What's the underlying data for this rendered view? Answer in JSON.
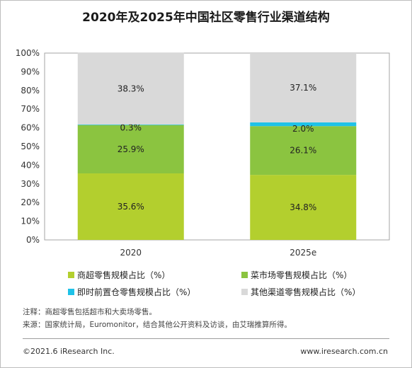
{
  "title": "2020年及2025年中国社区零售行业渠道结构",
  "chart_data": {
    "type": "bar",
    "stacked": true,
    "categories": [
      "2020",
      "2025e"
    ],
    "ylim": [
      0,
      100
    ],
    "yticks": [
      "0%",
      "10%",
      "20%",
      "30%",
      "40%",
      "50%",
      "60%",
      "70%",
      "80%",
      "90%",
      "100%"
    ],
    "series": [
      {
        "name": "商超零售规模占比（%）",
        "color": "#b3cf2e",
        "values": [
          35.6,
          34.8
        ],
        "labels": [
          "35.6%",
          "34.8%"
        ]
      },
      {
        "name": "菜市场零售规模占比（%）",
        "color": "#8bc440",
        "values": [
          25.9,
          26.1
        ],
        "labels": [
          "25.9%",
          "26.1%"
        ]
      },
      {
        "name": "即时前置仓零售规模占比（%）",
        "color": "#1fc2e8",
        "values": [
          0.3,
          2.0
        ],
        "labels": [
          "0.3%",
          "2.0%"
        ]
      },
      {
        "name": "其他渠道零售规模占比（%）",
        "color": "#d9d9d9",
        "values": [
          38.3,
          37.1
        ],
        "labels": [
          "38.3%",
          "37.1%"
        ]
      }
    ],
    "grid": false,
    "legend_position": "bottom"
  },
  "notes": {
    "note": "注释：商超零售包括超市和大卖场零售。",
    "source": "来源：国家统计局，Euromonitor，结合其他公开资料及访谈，由艾瑞推算所得。"
  },
  "footer": {
    "copyright": "©2021.6 iResearch Inc.",
    "website": "www.iresearch.com.cn"
  }
}
